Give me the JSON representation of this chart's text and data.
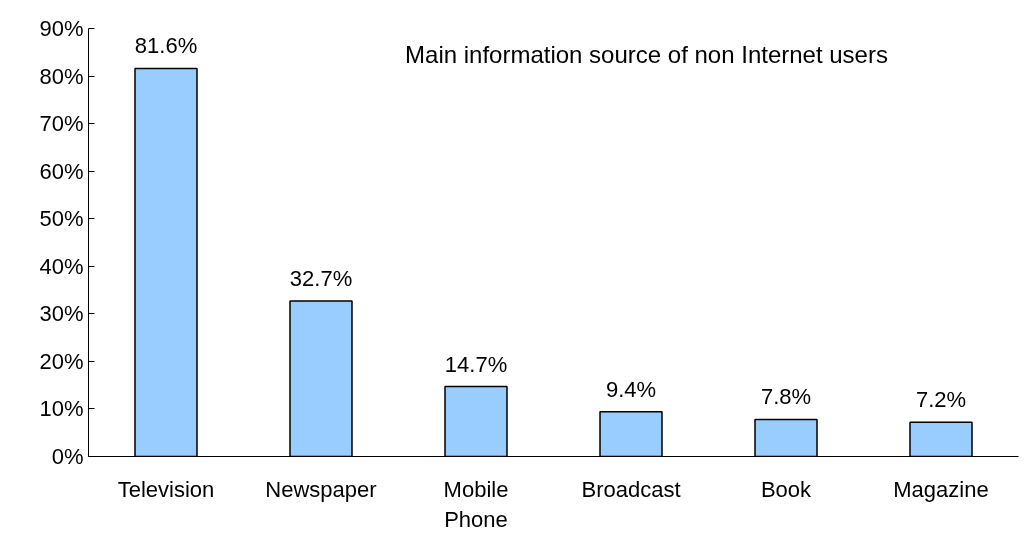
{
  "chart_data": {
    "type": "bar",
    "title": "Main information source of non Internet users",
    "categories": [
      "Television",
      "Newspaper",
      "Mobile Phone",
      "Broadcast",
      "Book",
      "Magazine"
    ],
    "values": [
      81.6,
      32.7,
      14.7,
      9.4,
      7.8,
      7.2
    ],
    "value_labels": [
      "81.6%",
      "32.7%",
      "14.7%",
      "9.4%",
      "7.8%",
      "7.2%"
    ],
    "color": "#99ccff",
    "ylim": [
      0,
      90
    ],
    "yticks": [
      {
        "value": 0,
        "label": "0%"
      },
      {
        "value": 10,
        "label": "10%"
      },
      {
        "value": 20,
        "label": "20%"
      },
      {
        "value": 30,
        "label": "30%"
      },
      {
        "value": 40,
        "label": "40%"
      },
      {
        "value": 50,
        "label": "50%"
      },
      {
        "value": 60,
        "label": "60%"
      },
      {
        "value": 70,
        "label": "70%"
      },
      {
        "value": 80,
        "label": "80%"
      },
      {
        "value": 90,
        "label": "90%"
      }
    ],
    "grid": false
  }
}
